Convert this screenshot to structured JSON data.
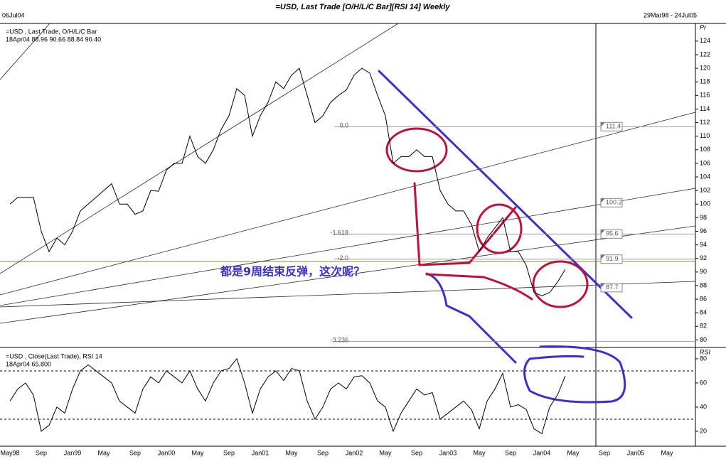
{
  "header": {
    "date": "06Jul04",
    "range": "29Mar98 - 24Jul05",
    "note": "都是9周结束反弹，这次呢？"
  },
  "chart_data": [
    {
      "type": "line",
      "title": "=USD, Last Trade [O/H/L/C Bar][RSI 14] Weekly",
      "y_axis_label": "Pr",
      "legend_detail": "18Apr04 88.96 90.66 88.84 90.40",
      "categories": [
        "May98",
        null,
        null,
        null,
        "Sep",
        null,
        null,
        null,
        "Jan99",
        null,
        null,
        null,
        "May",
        null,
        null,
        null,
        "Sep",
        null,
        null,
        null,
        "Jan00",
        null,
        null,
        null,
        "May",
        null,
        null,
        null,
        "Sep",
        null,
        null,
        null,
        "Jan01",
        null,
        null,
        null,
        "May",
        null,
        null,
        null,
        "Sep",
        null,
        null,
        null,
        "Jan02",
        null,
        null,
        null,
        "May",
        null,
        null,
        null,
        "Sep",
        null,
        null,
        null,
        "Jan03",
        null,
        null,
        null,
        "May",
        null,
        null,
        null,
        "Sep",
        null,
        null,
        null,
        "Jan04",
        null,
        null,
        null,
        "May",
        null,
        null,
        null,
        "Sep",
        null,
        null,
        null,
        "Jan05",
        null,
        null,
        null,
        "May"
      ],
      "series": [
        {
          "name": "=USD , Last Trade, O/H/L/C Bar",
          "color": "#000000",
          "values": [
            100,
            101,
            101,
            101,
            96,
            93,
            95,
            94,
            96,
            99,
            100,
            101,
            102,
            103,
            100,
            100,
            98.5,
            99,
            102,
            101.9,
            105,
            106,
            106,
            110,
            107,
            106,
            108,
            111,
            113,
            117,
            116,
            110,
            113,
            115,
            118,
            117,
            119,
            120,
            116,
            112,
            113,
            115,
            116,
            116.8,
            119,
            120,
            119.3,
            116,
            113,
            106,
            107,
            107,
            108,
            107,
            107,
            102,
            100,
            99,
            99,
            97,
            93,
            95,
            96.5,
            98,
            93,
            93,
            91,
            87,
            86.5,
            87,
            88.5,
            90.4,
            null,
            null,
            null,
            null,
            null,
            null,
            null,
            null,
            null,
            null,
            null,
            null,
            null
          ]
        }
      ],
      "ylim": [
        79,
        126.6
      ],
      "yticks": [
        80,
        82,
        84,
        86,
        88,
        90,
        92,
        94,
        96,
        98,
        100,
        102,
        104,
        106,
        108,
        110,
        112,
        114,
        116,
        118,
        120,
        122,
        124
      ],
      "fib_levels": [
        {
          "value": 111.4,
          "label": "0.0"
        },
        {
          "value": 95.6,
          "label": "-1.618"
        },
        {
          "value": 91.9,
          "label": "-2.0"
        },
        {
          "value": 79.8,
          "label": "-3.236"
        }
      ],
      "flags": [
        111.4,
        100.2,
        95.6,
        91.9,
        87.7
      ]
    },
    {
      "type": "line",
      "y_axis_label": "RSI",
      "legend_detail": "18Apr04 65.800",
      "series": [
        {
          "name": "=USD , Close(Last Trade), RSI 14",
          "color": "#000000",
          "values": [
            45,
            55,
            60,
            50,
            20,
            25,
            40,
            35,
            55,
            70,
            75,
            70,
            65,
            60,
            45,
            40,
            35,
            55,
            65,
            60,
            70,
            65,
            60,
            70,
            55,
            45,
            60,
            70,
            72,
            80,
            60,
            35,
            55,
            65,
            70,
            62,
            72,
            70,
            45,
            30,
            40,
            55,
            60,
            55,
            65,
            66,
            60,
            45,
            40,
            20,
            35,
            45,
            55,
            50,
            52,
            30,
            35,
            40,
            45,
            38,
            22,
            45,
            55,
            68,
            40,
            42,
            38,
            22,
            18,
            40,
            50,
            65.8,
            null,
            null,
            null,
            null,
            null,
            null,
            null,
            null,
            null,
            null,
            null,
            null,
            null
          ]
        }
      ],
      "ylim": [
        8.2,
        88.8
      ],
      "yticks": [
        20,
        40,
        60,
        80
      ],
      "levels": [
        70,
        30
      ]
    }
  ]
}
